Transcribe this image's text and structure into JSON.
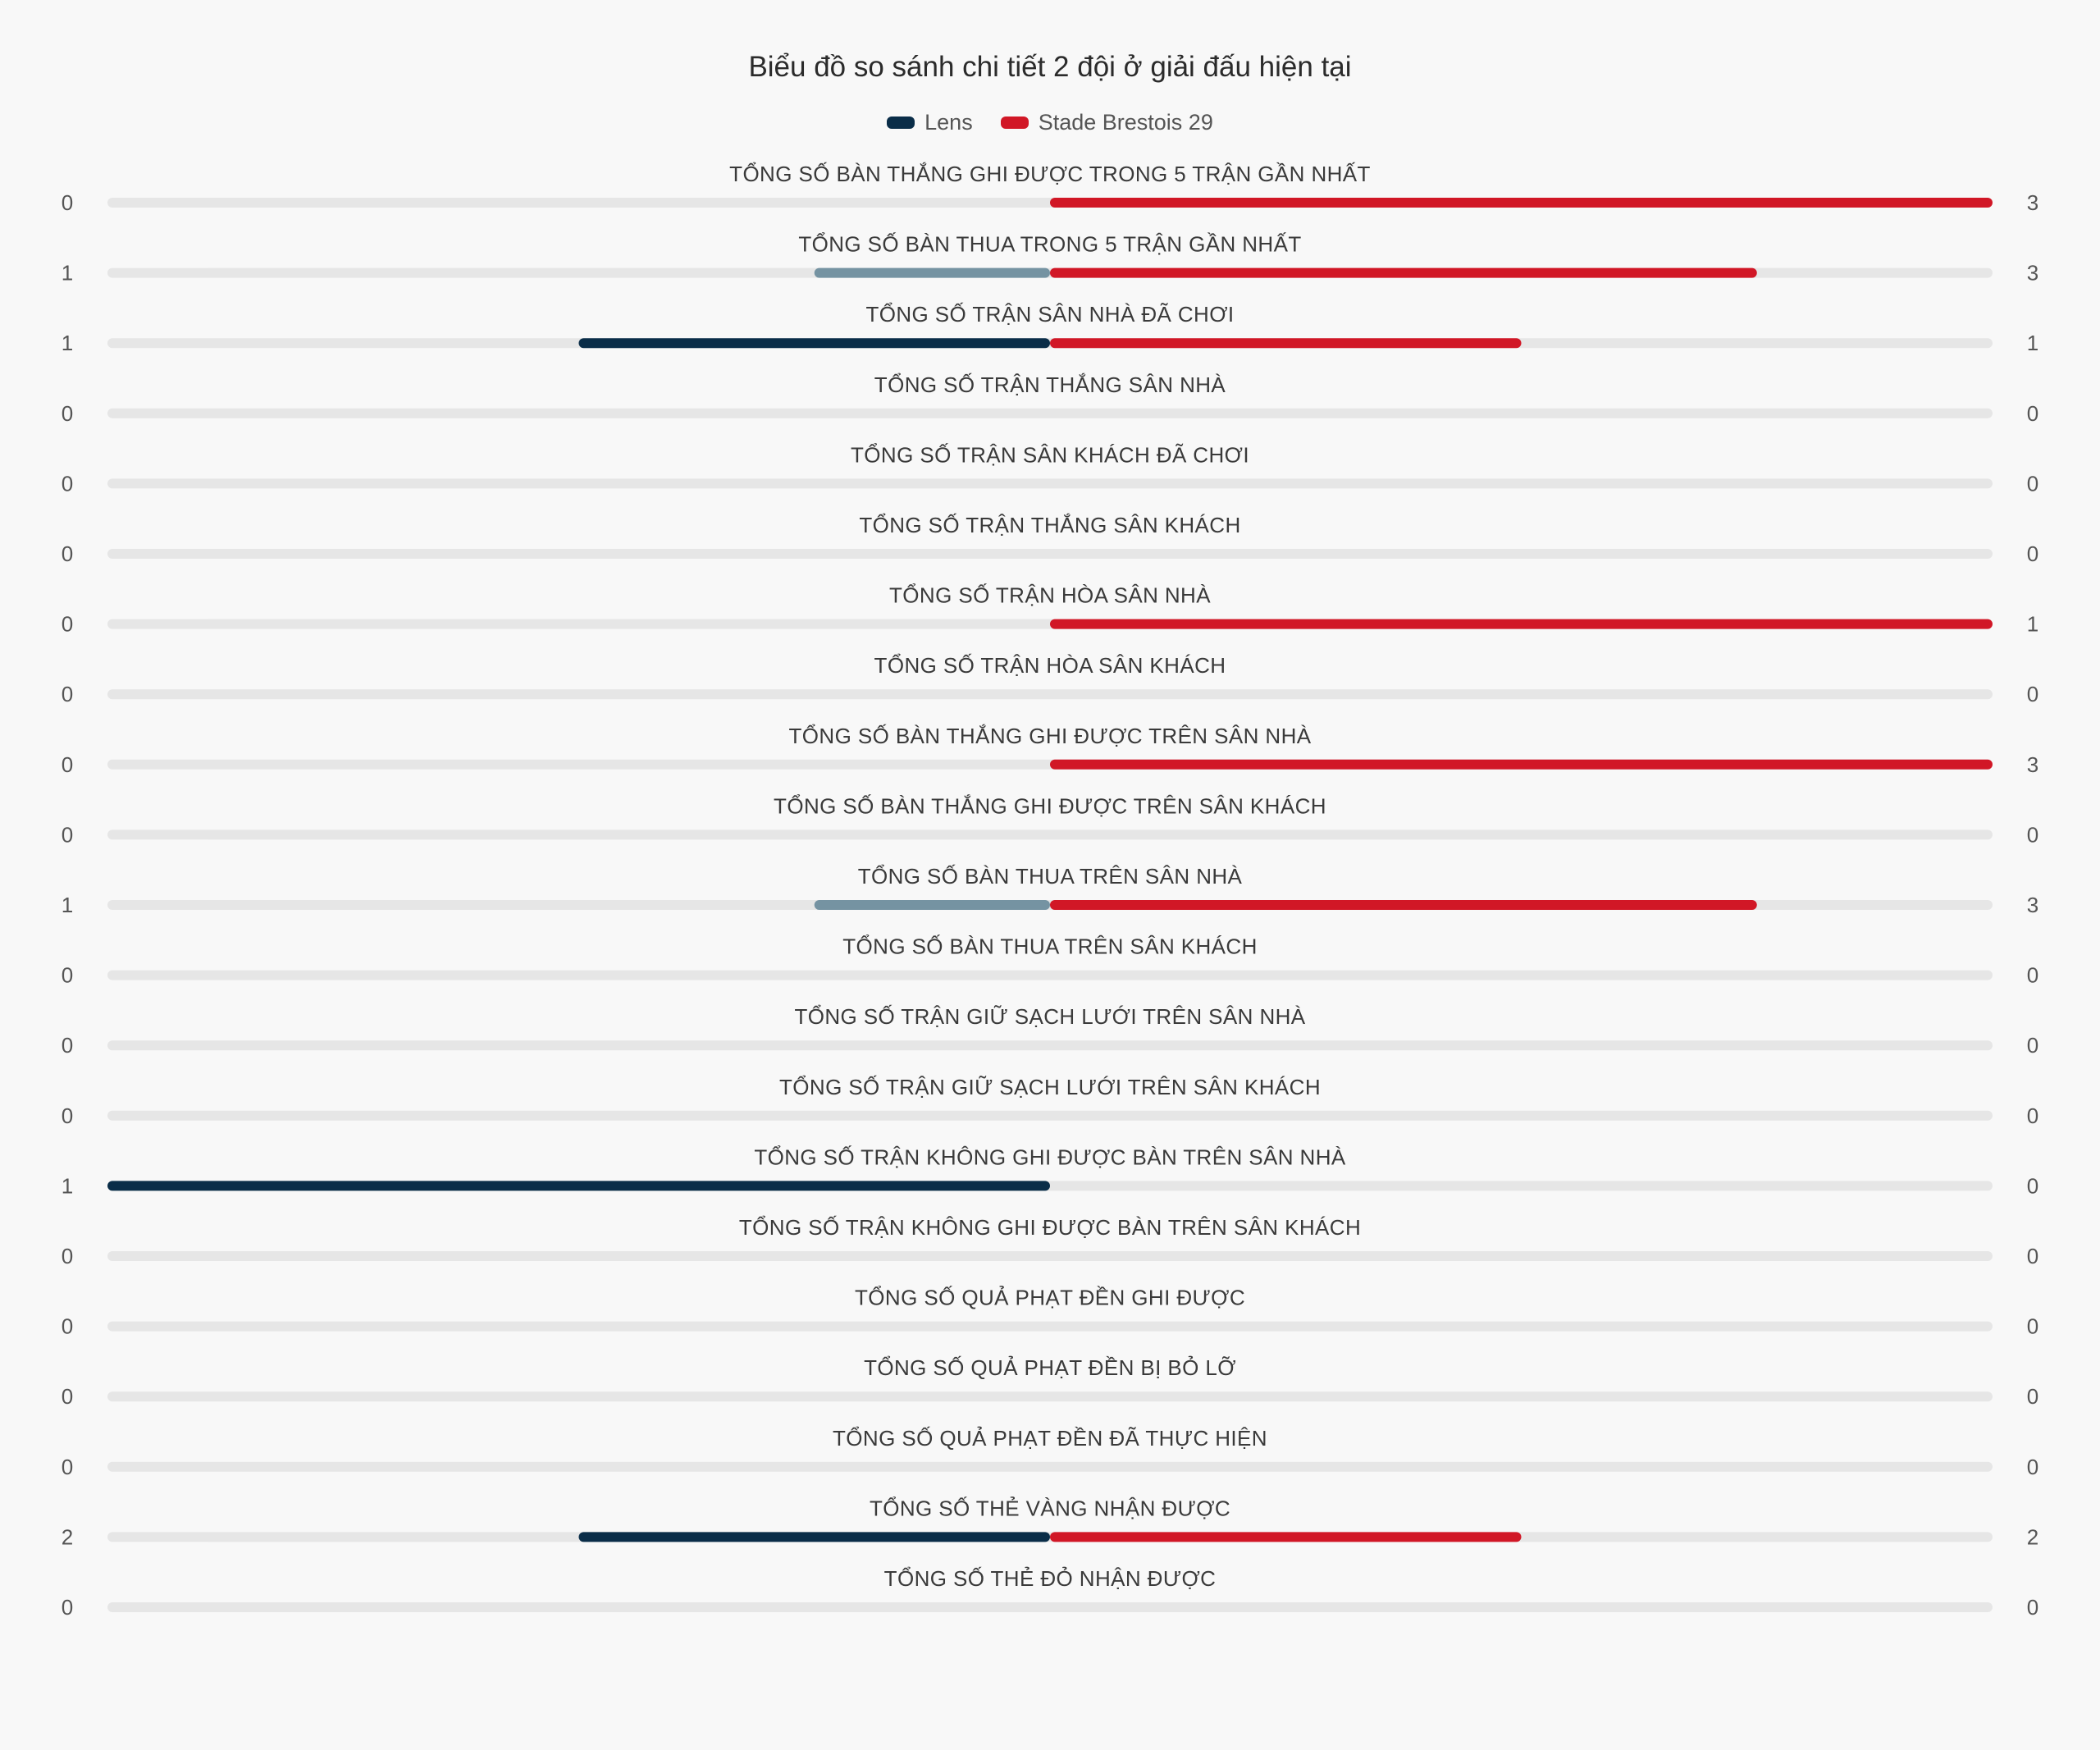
{
  "chart_data": {
    "type": "bar",
    "title": "Biểu đồ so sánh chi tiết 2 đội ở giải đấu hiện tại",
    "legend_position": "top-center",
    "series": [
      {
        "name": "Lens",
        "color": "#0a2d48",
        "faded_color": "#7593a2"
      },
      {
        "name": "Stade Brestois 29",
        "color": "#d11726"
      }
    ],
    "track_color": "#e6e6e6",
    "rows": [
      {
        "label": "TỔNG SỐ BÀN THẮNG GHI ĐƯỢC TRONG 5 TRẬN GẦN NHẤT",
        "left": 0,
        "right": 3
      },
      {
        "label": "TỔNG SỐ BÀN THUA TRONG 5 TRẬN GẦN NHẤT",
        "left": 1,
        "right": 3
      },
      {
        "label": "TỔNG SỐ TRẬN SÂN NHÀ ĐÃ CHƠI",
        "left": 1,
        "right": 1
      },
      {
        "label": "TỔNG SỐ TRẬN THẮNG SÂN NHÀ",
        "left": 0,
        "right": 0
      },
      {
        "label": "TỔNG SỐ TRẬN SÂN KHÁCH ĐÃ CHƠI",
        "left": 0,
        "right": 0
      },
      {
        "label": "TỔNG SỐ TRẬN THẮNG SÂN KHÁCH",
        "left": 0,
        "right": 0
      },
      {
        "label": "TỔNG SỐ TRẬN HÒA SÂN NHÀ",
        "left": 0,
        "right": 1
      },
      {
        "label": "TỔNG SỐ TRẬN HÒA SÂN KHÁCH",
        "left": 0,
        "right": 0
      },
      {
        "label": "TỔNG SỐ BÀN THẮNG GHI ĐƯỢC TRÊN SÂN NHÀ",
        "left": 0,
        "right": 3
      },
      {
        "label": "TỔNG SỐ BÀN THẮNG GHI ĐƯỢC TRÊN SÂN KHÁCH",
        "left": 0,
        "right": 0
      },
      {
        "label": "TỔNG SỐ BÀN THUA TRÊN SÂN NHÀ",
        "left": 1,
        "right": 3
      },
      {
        "label": "TỔNG SỐ BÀN THUA TRÊN SÂN KHÁCH",
        "left": 0,
        "right": 0
      },
      {
        "label": "TỔNG SỐ TRẬN GIỮ SẠCH LƯỚI TRÊN SÂN NHÀ",
        "left": 0,
        "right": 0
      },
      {
        "label": "TỔNG SỐ TRẬN GIỮ SẠCH LƯỚI TRÊN SÂN KHÁCH",
        "left": 0,
        "right": 0
      },
      {
        "label": "TỔNG SỐ TRẬN KHÔNG GHI ĐƯỢC BÀN TRÊN SÂN NHÀ",
        "left": 1,
        "right": 0
      },
      {
        "label": "TỔNG SỐ TRẬN KHÔNG GHI ĐƯỢC BÀN TRÊN SÂN KHÁCH",
        "left": 0,
        "right": 0
      },
      {
        "label": "TỔNG SỐ QUẢ PHẠT ĐỀN GHI ĐƯỢC",
        "left": 0,
        "right": 0
      },
      {
        "label": "TỔNG SỐ QUẢ PHẠT ĐỀN BỊ BỎ LỠ",
        "left": 0,
        "right": 0
      },
      {
        "label": "TỔNG SỐ QUẢ PHẠT ĐỀN ĐÃ THỰC HIỆN",
        "left": 0,
        "right": 0
      },
      {
        "label": "TỔNG SỐ THẺ VÀNG NHẬN ĐƯỢC",
        "left": 2,
        "right": 2
      },
      {
        "label": "TỔNG SỐ THẺ ĐỎ NHẬN ĐƯỢC",
        "left": 0,
        "right": 0
      }
    ]
  }
}
